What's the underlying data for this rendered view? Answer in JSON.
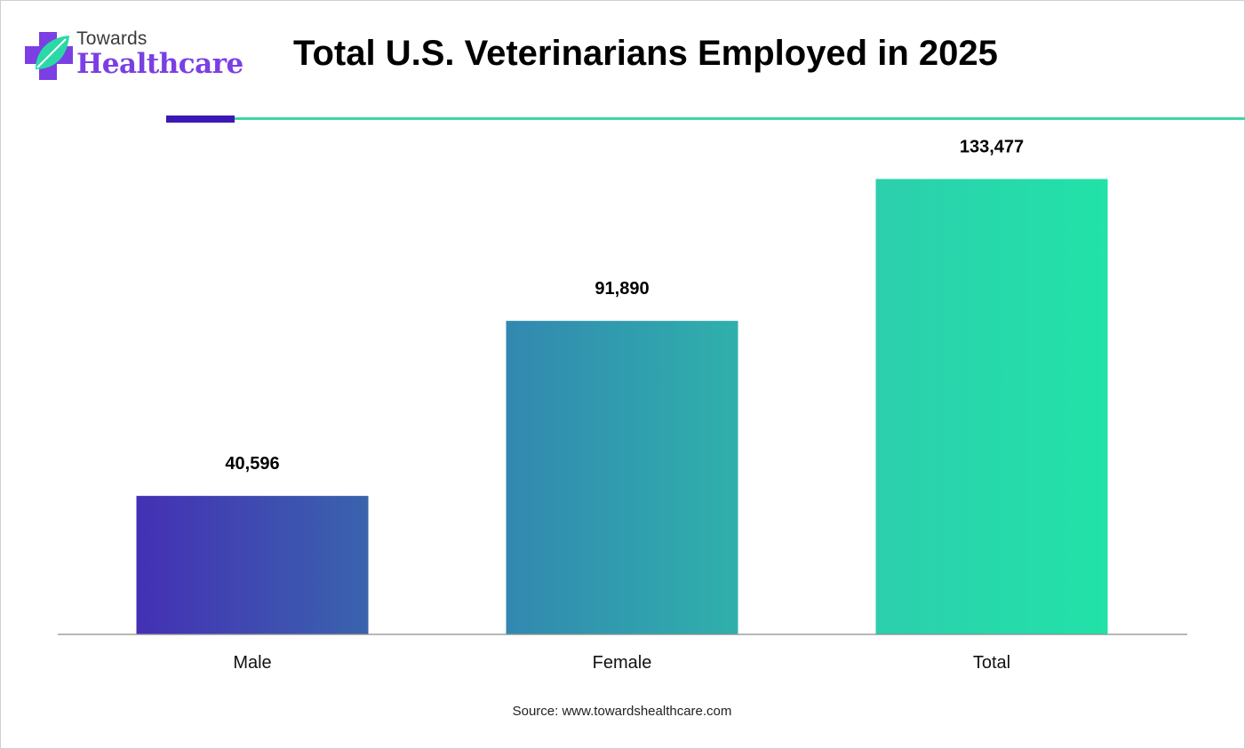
{
  "logo": {
    "line1": "Towards",
    "line2": "Healthcare"
  },
  "title": "Total U.S. Veterinarians Employed in 2025",
  "source": "Source: www.towardshealthcare.com",
  "colors": {
    "brand_purple": "#7b3fe4",
    "rule_dark": "#3a18b5",
    "rule_teal": "#3dd6a8"
  },
  "chart_data": {
    "type": "bar",
    "title": "Total U.S. Veterinarians Employed in 2025",
    "categories": [
      "Male",
      "Female",
      "Total"
    ],
    "values": [
      40596,
      91890,
      133477
    ],
    "value_labels": [
      "40,596",
      "91,890",
      "133,477"
    ],
    "ylim": [
      0,
      150000
    ],
    "grid": false,
    "legend": "none",
    "bar_gradients": [
      [
        "#4430b5",
        "#3a63ad"
      ],
      [
        "#3288b0",
        "#2fb0ac"
      ],
      [
        "#2ccfad",
        "#22e2a8"
      ]
    ]
  }
}
